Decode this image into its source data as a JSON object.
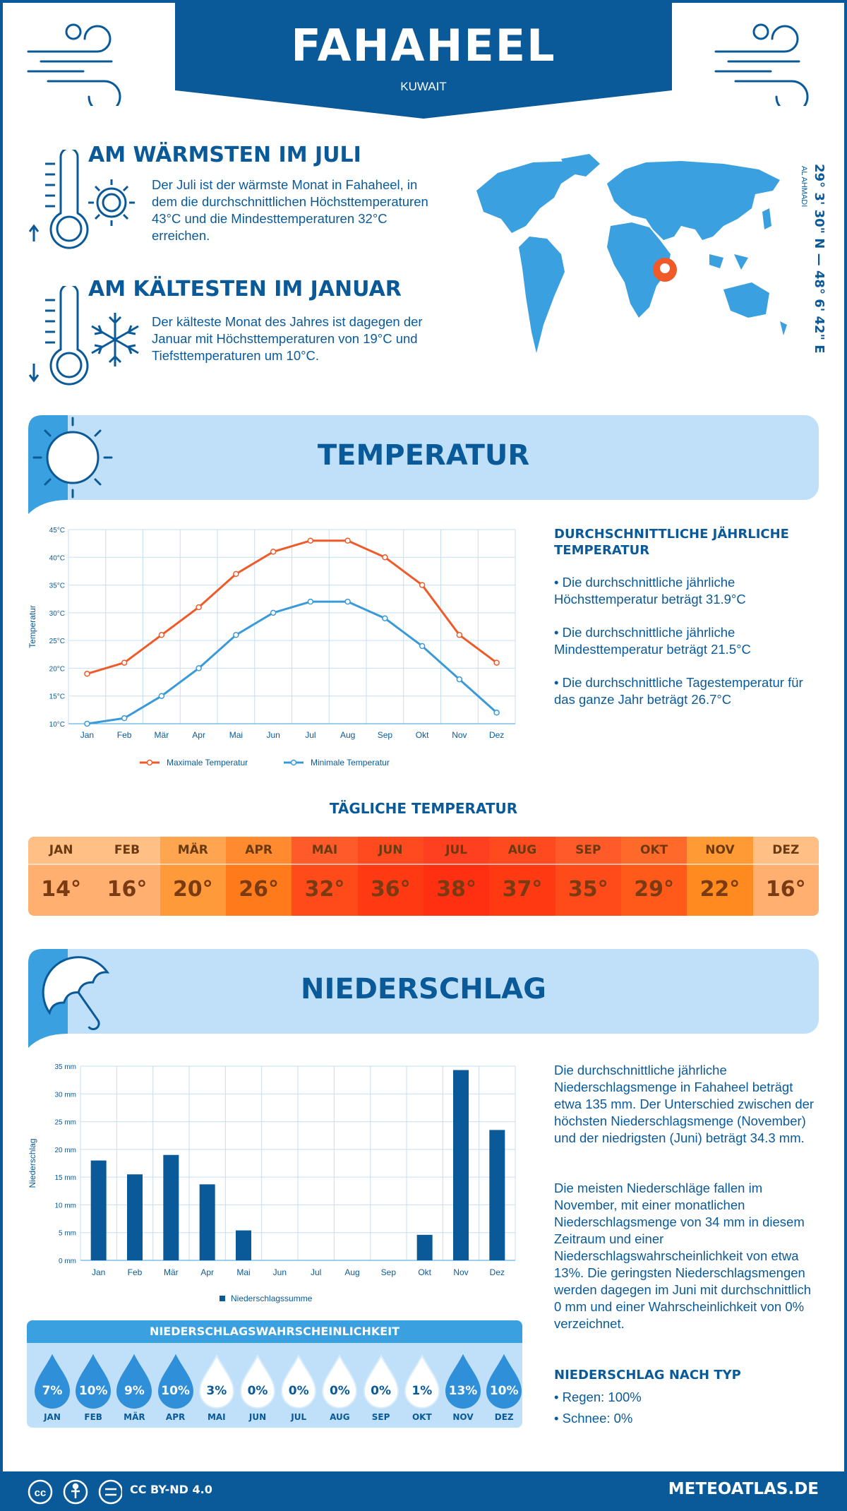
{
  "header": {
    "title": "FAHAHEEL",
    "subtitle": "KUWAIT"
  },
  "warmest": {
    "title": "AM WÄRMSTEN IM JULI",
    "text": "Der Juli ist der wärmste Monat in Fahaheel, in dem die durchschnittlichen Höchsttemperaturen 43°C und die Mindesttemperaturen 32°C erreichen."
  },
  "coldest": {
    "title": "AM KÄLTESTEN IM JANUAR",
    "text": "Der kälteste Monat des Jahres ist dagegen der Januar mit Höchsttemperaturen von 19°C und Tiefsttemperaturen um 10°C."
  },
  "location": {
    "coordinates": "29° 3' 30\" N — 48° 6' 42\" E",
    "region": "AL AHMADI"
  },
  "temperature_section": {
    "title": "TEMPERATUR",
    "side_title": "DURCHSCHNITTLICHE JÄHRLICHE TEMPERATUR",
    "bullets": [
      "• Die durchschnittliche jährliche Höchsttemperatur beträgt 31.9°C",
      "• Die durchschnittliche jährliche Mindesttemperatur beträgt 21.5°C",
      "• Die durchschnittliche Tagestemperatur für das ganze Jahr beträgt 26.7°C"
    ],
    "legend_max": "Maximale Temperatur",
    "legend_min": "Minimale Temperatur"
  },
  "daily": {
    "title": "TÄGLICHE TEMPERATUR",
    "months": [
      "JAN",
      "FEB",
      "MÄR",
      "APR",
      "MAI",
      "JUN",
      "JUL",
      "AUG",
      "SEP",
      "OKT",
      "NOV",
      "DEZ"
    ],
    "temps": [
      "14°",
      "16°",
      "20°",
      "26°",
      "32°",
      "36°",
      "38°",
      "37°",
      "35°",
      "29°",
      "22°",
      "16°"
    ],
    "colors": [
      "#ffb070",
      "#ffb070",
      "#ff9a3a",
      "#ff7a1a",
      "#ff4a1a",
      "#ff3a12",
      "#ff3012",
      "#ff3a12",
      "#ff4a1a",
      "#ff5a1a",
      "#ff8a20",
      "#ffb070"
    ],
    "head_colors": [
      "#ffbf85",
      "#ffbf85",
      "#ffa550",
      "#ff8a30",
      "#ff5a2a",
      "#ff4a20",
      "#ff4020",
      "#ff4a20",
      "#ff5a2a",
      "#ff6a2a",
      "#ff9a35",
      "#ffbf85"
    ]
  },
  "precip_section": {
    "title": "NIEDERSCHLAG",
    "text1": "Die durchschnittliche jährliche Niederschlagsmenge in Fahaheel beträgt etwa 135 mm. Der Unterschied zwischen der höchsten Niederschlagsmenge (November) und der niedrigsten (Juni) beträgt 34.3 mm.",
    "text2": "Die meisten Niederschläge fallen im November, mit einer monatlichen Niederschlagsmenge von 34 mm in diesem Zeitraum und einer Niederschlagswahrscheinlichkeit von etwa 13%. Die geringsten Niederschlagsmengen werden dagegen im Juni mit durchschnittlich 0 mm und einer Wahrscheinlichkeit von 0% verzeichnet.",
    "type_title": "NIEDERSCHLAG NACH TYP",
    "types": [
      "• Regen: 100%",
      "• Schnee: 0%"
    ],
    "legend": "Niederschlagssumme"
  },
  "probability": {
    "title": "NIEDERSCHLAGSWAHRSCHEINLICHKEIT",
    "months": [
      "JAN",
      "FEB",
      "MÄR",
      "APR",
      "MAI",
      "JUN",
      "JUL",
      "AUG",
      "SEP",
      "OKT",
      "NOV",
      "DEZ"
    ],
    "values": [
      "7%",
      "10%",
      "9%",
      "10%",
      "3%",
      "0%",
      "0%",
      "0%",
      "0%",
      "1%",
      "13%",
      "10%"
    ]
  },
  "footer": {
    "license": "CC BY-ND 4.0",
    "site": "METEOATLAS.DE"
  },
  "chart_data": [
    {
      "type": "line",
      "ylabel": "Temperatur",
      "ylim": [
        10,
        45
      ],
      "yticks": [
        "10°C",
        "15°C",
        "20°C",
        "25°C",
        "30°C",
        "35°C",
        "40°C",
        "45°C"
      ],
      "categories": [
        "Jan",
        "Feb",
        "Mär",
        "Apr",
        "Mai",
        "Jun",
        "Jul",
        "Aug",
        "Sep",
        "Okt",
        "Nov",
        "Dez"
      ],
      "series": [
        {
          "name": "Maximale Temperatur",
          "color": "#f05a28",
          "values": [
            19,
            21,
            26,
            31,
            37,
            41,
            43,
            43,
            40,
            35,
            26,
            21
          ]
        },
        {
          "name": "Minimale Temperatur",
          "color": "#3a9ad8",
          "values": [
            10,
            11,
            15,
            20,
            26,
            30,
            32,
            32,
            29,
            24,
            18,
            12
          ]
        }
      ],
      "grid": true,
      "legend": "bottom"
    },
    {
      "type": "bar",
      "ylabel": "Niederschlag",
      "ylim": [
        0,
        35
      ],
      "yticks": [
        "0 mm",
        "5 mm",
        "10 mm",
        "15 mm",
        "20 mm",
        "25 mm",
        "30 mm",
        "35 mm"
      ],
      "categories": [
        "Jan",
        "Feb",
        "Mär",
        "Apr",
        "Mai",
        "Jun",
        "Jul",
        "Aug",
        "Sep",
        "Okt",
        "Nov",
        "Dez"
      ],
      "series": [
        {
          "name": "Niederschlagssumme",
          "color": "#0a5a99",
          "values": [
            18,
            15.5,
            19,
            13.7,
            5.4,
            0,
            0,
            0,
            0,
            4.6,
            34.3,
            23.5
          ]
        }
      ],
      "grid": true,
      "legend": "bottom"
    }
  ]
}
